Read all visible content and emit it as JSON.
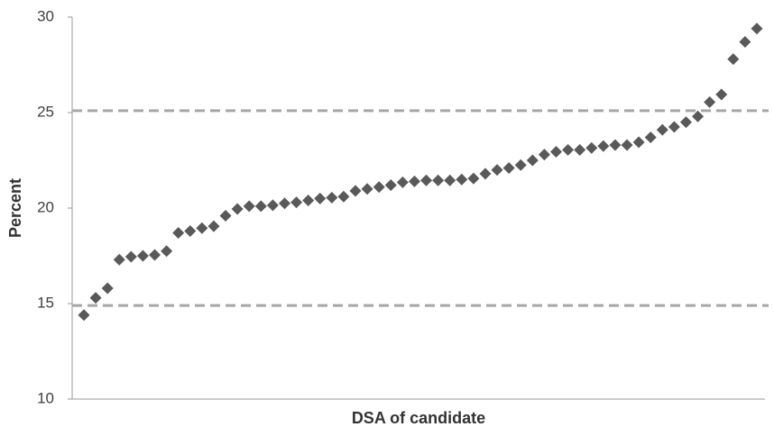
{
  "chart_data": {
    "type": "scatter",
    "x_label": "DSA of candidate",
    "y_label": "Percent",
    "values": [
      14.4,
      15.3,
      15.8,
      17.3,
      17.45,
      17.5,
      17.55,
      17.75,
      18.7,
      18.8,
      18.95,
      19.05,
      19.6,
      19.95,
      20.1,
      20.1,
      20.15,
      20.25,
      20.3,
      20.4,
      20.5,
      20.55,
      20.6,
      20.9,
      21.0,
      21.1,
      21.2,
      21.35,
      21.4,
      21.45,
      21.45,
      21.45,
      21.5,
      21.55,
      21.8,
      22.0,
      22.1,
      22.25,
      22.5,
      22.8,
      22.95,
      23.05,
      23.05,
      23.15,
      23.25,
      23.3,
      23.3,
      23.45,
      23.7,
      24.1,
      24.25,
      24.5,
      24.8,
      25.55,
      25.95,
      27.8,
      28.7,
      29.4
    ],
    "color": "#595959",
    "reference_lines": [
      25.1,
      14.9
    ],
    "reference_color": "#a6a6a6",
    "ylim": [
      10,
      30
    ],
    "yticks": [
      10,
      15,
      20,
      25,
      30
    ],
    "grid": false
  }
}
